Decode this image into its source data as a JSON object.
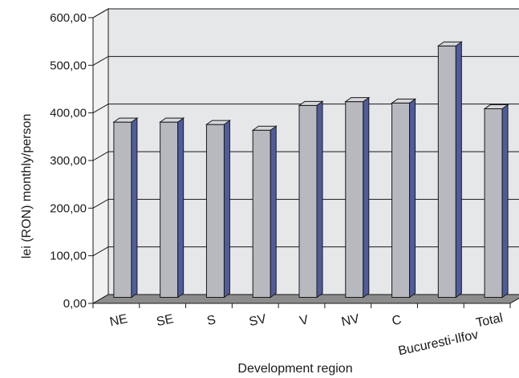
{
  "chart_data": {
    "type": "bar",
    "style": "3d-column",
    "categories": [
      "NE",
      "SE",
      "S",
      "SV",
      "V",
      "NV",
      "C",
      "Bucuresti-Ilfov",
      "Total"
    ],
    "values": [
      368,
      368,
      363,
      351,
      403,
      411,
      408,
      528,
      396
    ],
    "xlabel": "Development region",
    "ylabel": "lei (RON) monthly/person",
    "ylim": [
      0,
      600
    ],
    "yticks": [
      {
        "value": 0,
        "label": "0,00"
      },
      {
        "value": 100,
        "label": "100,00"
      },
      {
        "value": 200,
        "label": "200,00"
      },
      {
        "value": 300,
        "label": "300,00"
      },
      {
        "value": 400,
        "label": "400,00"
      },
      {
        "value": 500,
        "label": "500,00"
      },
      {
        "value": 600,
        "label": "600,00"
      }
    ],
    "grid": true,
    "legend": "none",
    "colors": {
      "bar_front": "#b7b9be",
      "bar_side": "#4f5c9c",
      "bar_top": "#d6d7db",
      "plot_wall": "#e6e7e9",
      "side_wall": "#f1f1f2",
      "floor": "#8c8c8c",
      "gridline": "#1a1a1a"
    }
  }
}
